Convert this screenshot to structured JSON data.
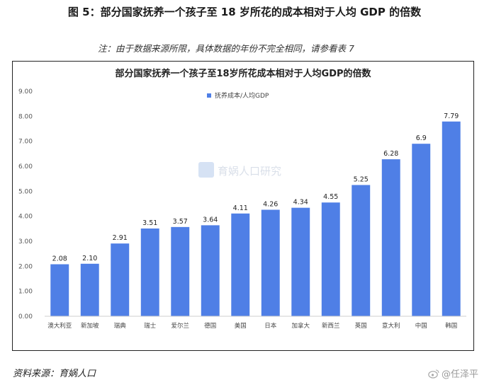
{
  "figure_title": "图 5：部分国家抚养一个孩子至 18 岁所花的成本相对于人均 GDP 的倍数",
  "note": "注：由于数据来源所限，具体数据的年份不完全相同，请参看表 7",
  "source": "资料来源：育娲人口",
  "watermark": "育娲人口研究",
  "weibo_handle": "@任泽平",
  "bar_color": "#4f7fe6",
  "chart_data": {
    "type": "bar",
    "title": "部分国家抚养一个孩子至18岁所花成本相对于人均GDP的倍数",
    "legend": "抚养成本/人均GDP",
    "legend_position": "top-center",
    "categories": [
      "澳大利亚",
      "新加坡",
      "瑞典",
      "瑞士",
      "爱尔兰",
      "德国",
      "美国",
      "日本",
      "加拿大",
      "新西兰",
      "英国",
      "意大利",
      "中国",
      "韩国"
    ],
    "values": [
      2.08,
      2.1,
      2.91,
      3.51,
      3.57,
      3.64,
      4.11,
      4.26,
      4.34,
      4.55,
      5.25,
      6.28,
      6.9,
      7.79
    ],
    "value_labels": [
      "2.08",
      "2.10",
      "2.91",
      "3.51",
      "3.57",
      "3.64",
      "4.11",
      "4.26",
      "4.34",
      "4.55",
      "5.25",
      "6.28",
      "6.9",
      "7.79"
    ],
    "ylim": [
      0,
      9
    ],
    "yticks": [
      "0.00",
      "1.00",
      "2.00",
      "3.00",
      "4.00",
      "5.00",
      "6.00",
      "7.00",
      "8.00",
      "9.00"
    ],
    "grid": false
  }
}
